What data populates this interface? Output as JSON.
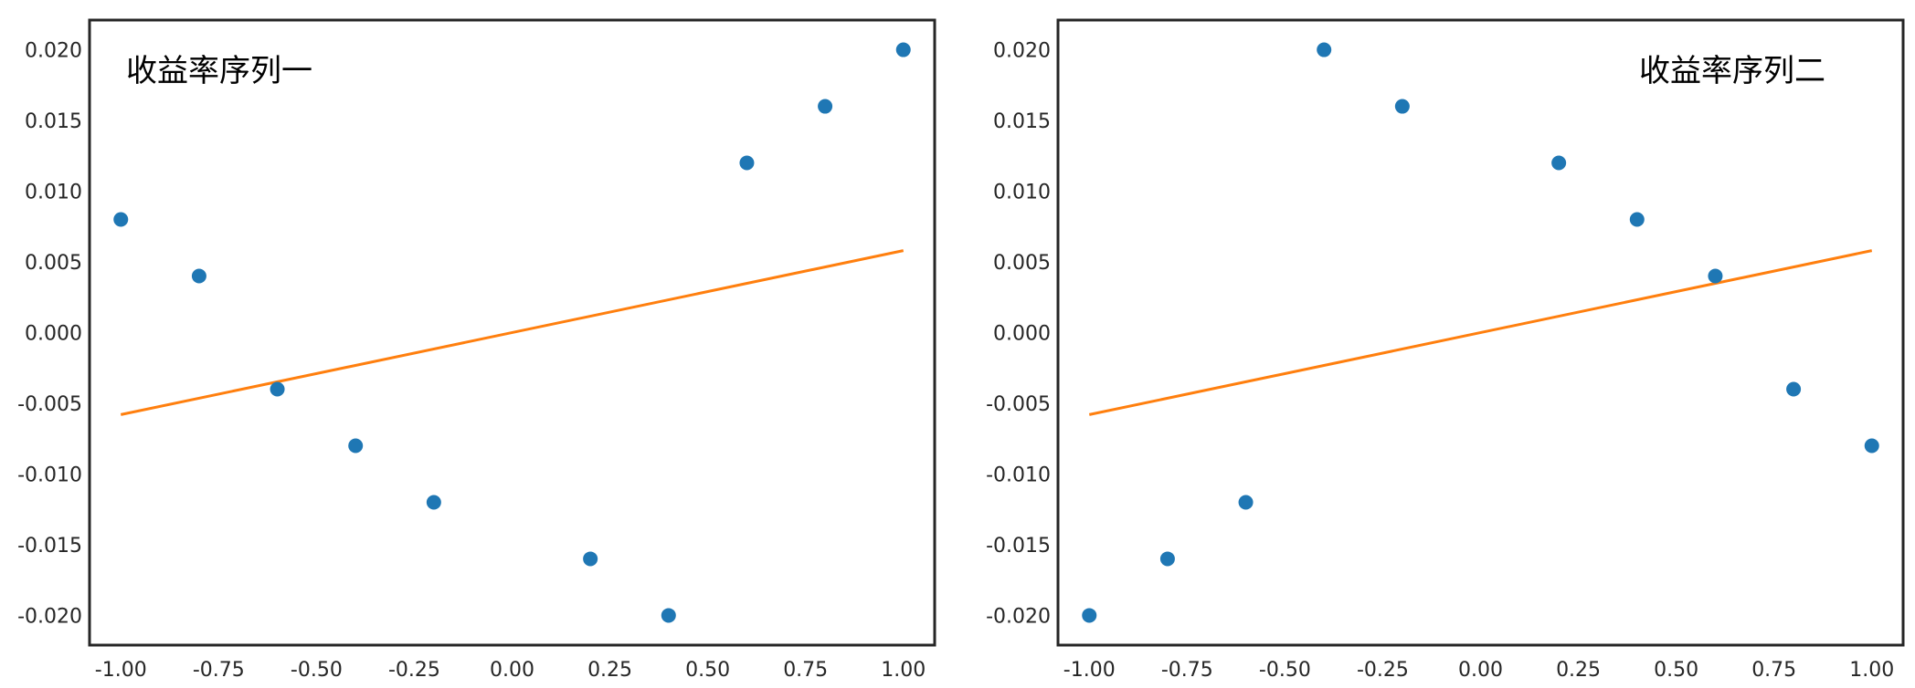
{
  "colors": {
    "scatter": "#1f77b4",
    "fit_line": "#ff7f0e",
    "axes": "#262626"
  },
  "chart_data": [
    {
      "type": "scatter",
      "title": "收益率序列一",
      "title_position": "top-left",
      "xlabel": "",
      "ylabel": "",
      "xlim": [
        -1.08,
        1.08
      ],
      "ylim": [
        -0.0221,
        0.0221
      ],
      "xticks": [
        "-1.00",
        "-0.75",
        "-0.50",
        "-0.25",
        "0.00",
        "0.25",
        "0.50",
        "0.75",
        "1.00"
      ],
      "yticks": [
        "-0.020",
        "-0.015",
        "-0.010",
        "-0.005",
        "0.000",
        "0.005",
        "0.010",
        "0.015",
        "0.020"
      ],
      "grid": false,
      "points": {
        "x": [
          -1.0,
          -0.8,
          -0.6,
          -0.4,
          -0.2,
          0.2,
          0.4,
          0.6,
          0.8,
          1.0
        ],
        "y": [
          0.008,
          0.004,
          -0.004,
          -0.008,
          -0.012,
          -0.016,
          -0.02,
          0.012,
          0.016,
          0.02
        ]
      },
      "fit_line": {
        "x": [
          -1.0,
          1.0
        ],
        "y": [
          -0.0058,
          0.0058
        ]
      }
    },
    {
      "type": "scatter",
      "title": "收益率序列二",
      "title_position": "top-right",
      "xlabel": "",
      "ylabel": "",
      "xlim": [
        -1.08,
        1.08
      ],
      "ylim": [
        -0.0221,
        0.0221
      ],
      "xticks": [
        "-1.00",
        "-0.75",
        "-0.50",
        "-0.25",
        "0.00",
        "0.25",
        "0.50",
        "0.75",
        "1.00"
      ],
      "yticks": [
        "-0.020",
        "-0.015",
        "-0.010",
        "-0.005",
        "0.000",
        "0.005",
        "0.010",
        "0.015",
        "0.020"
      ],
      "grid": false,
      "points": {
        "x": [
          -1.0,
          -0.8,
          -0.6,
          -0.4,
          -0.2,
          0.2,
          0.4,
          0.6,
          0.8,
          1.0
        ],
        "y": [
          -0.02,
          -0.016,
          -0.012,
          0.02,
          0.016,
          0.012,
          0.008,
          0.004,
          -0.004,
          -0.008
        ]
      },
      "fit_line": {
        "x": [
          -1.0,
          1.0
        ],
        "y": [
          -0.0058,
          0.0058
        ]
      }
    }
  ]
}
